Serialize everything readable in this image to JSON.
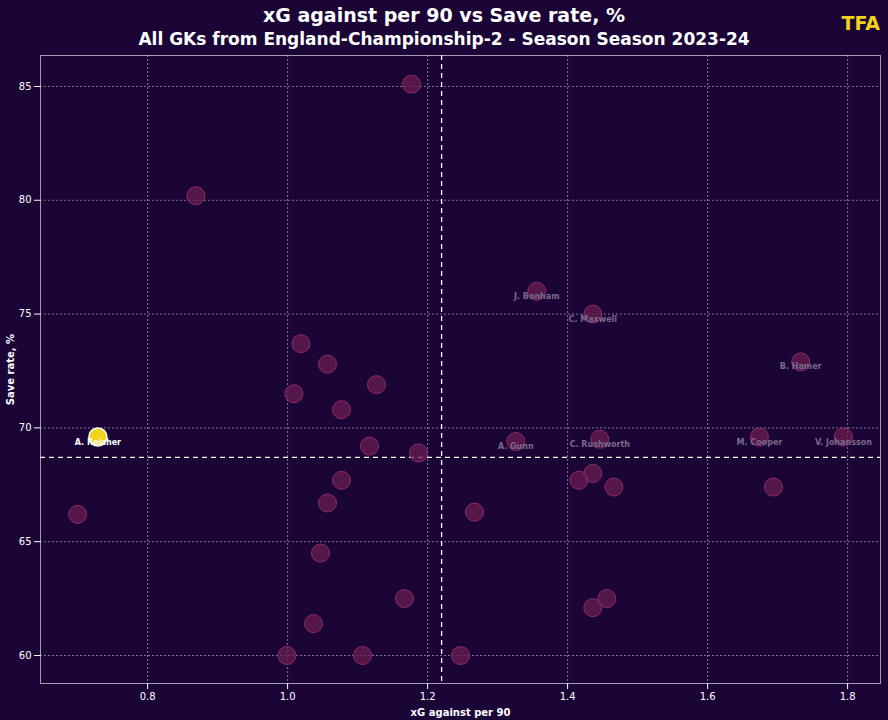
{
  "chart_data": {
    "type": "scatter",
    "title": "xG against per 90 vs Save rate, %",
    "subtitle": "All GKs from England-Championship-2 - Season Season 2023-24",
    "brand": "TFA",
    "x_label": "xG against per 90",
    "y_label": "Save rate, %",
    "x": [
      0.729,
      1.177,
      0.869,
      1.356,
      1.436,
      1.733,
      1.019,
      1.057,
      1.127,
      1.009,
      1.077,
      1.117,
      1.187,
      1.326,
      1.446,
      1.674,
      1.794,
      1.436,
      1.416,
      1.466,
      1.694,
      1.077,
      1.057,
      1.267,
      0.7,
      1.047,
      1.167,
      1.456,
      1.436,
      1.037,
      0.999,
      1.107,
      1.247
    ],
    "values": [
      69.6,
      85.1,
      80.2,
      76.0,
      75.0,
      72.9,
      73.7,
      72.8,
      71.9,
      71.5,
      70.8,
      69.2,
      68.9,
      69.4,
      69.5,
      69.6,
      69.6,
      68.0,
      67.7,
      67.4,
      67.4,
      67.7,
      66.7,
      66.3,
      66.2,
      64.5,
      62.5,
      62.5,
      62.1,
      61.4,
      60.0,
      60.0,
      60.0
    ],
    "labels": [
      "A. Reicher",
      null,
      null,
      "J. Bonham",
      "C. Maxwell",
      "B. Hamer",
      null,
      null,
      null,
      null,
      null,
      null,
      null,
      "A. Gunn",
      "C. Rushworth",
      "M. Cooper",
      "V. Johansson",
      null,
      null,
      null,
      null,
      null,
      null,
      null,
      null,
      null,
      null,
      null,
      null,
      null,
      null,
      null,
      null
    ],
    "colors": [
      "#f2d31b",
      "#6a1d52",
      "#6a1d52",
      "#6a1d52",
      "#6a1d52",
      "#6a1d52",
      "#6a1d52",
      "#6a1d52",
      "#6a1d52",
      "#6a1d52",
      "#6a1d52",
      "#6a1d52",
      "#6a1d52",
      "#6a1d52",
      "#6a1d52",
      "#6a1d52",
      "#6a1d52",
      "#6a1d52",
      "#6a1d52",
      "#6a1d52",
      "#6a1d52",
      "#6a1d52",
      "#6a1d52",
      "#6a1d52",
      "#6a1d52",
      "#6a1d52",
      "#6a1d52",
      "#6a1d52",
      "#6a1d52",
      "#6a1d52",
      "#6a1d52",
      "#6a1d52",
      "#6a1d52"
    ],
    "reference_lines": {
      "x": 1.22,
      "y": 68.7
    },
    "xlim": [
      0.647,
      1.847
    ],
    "ylim": [
      58.77,
      86.36
    ],
    "xticks": [
      0.8,
      {
        "value": 1,
        "label": "1.0"
      },
      1.2,
      1.4,
      1.6,
      1.8
    ],
    "yticks": [
      60,
      65,
      70,
      75,
      80,
      85
    ],
    "grid": true
  }
}
